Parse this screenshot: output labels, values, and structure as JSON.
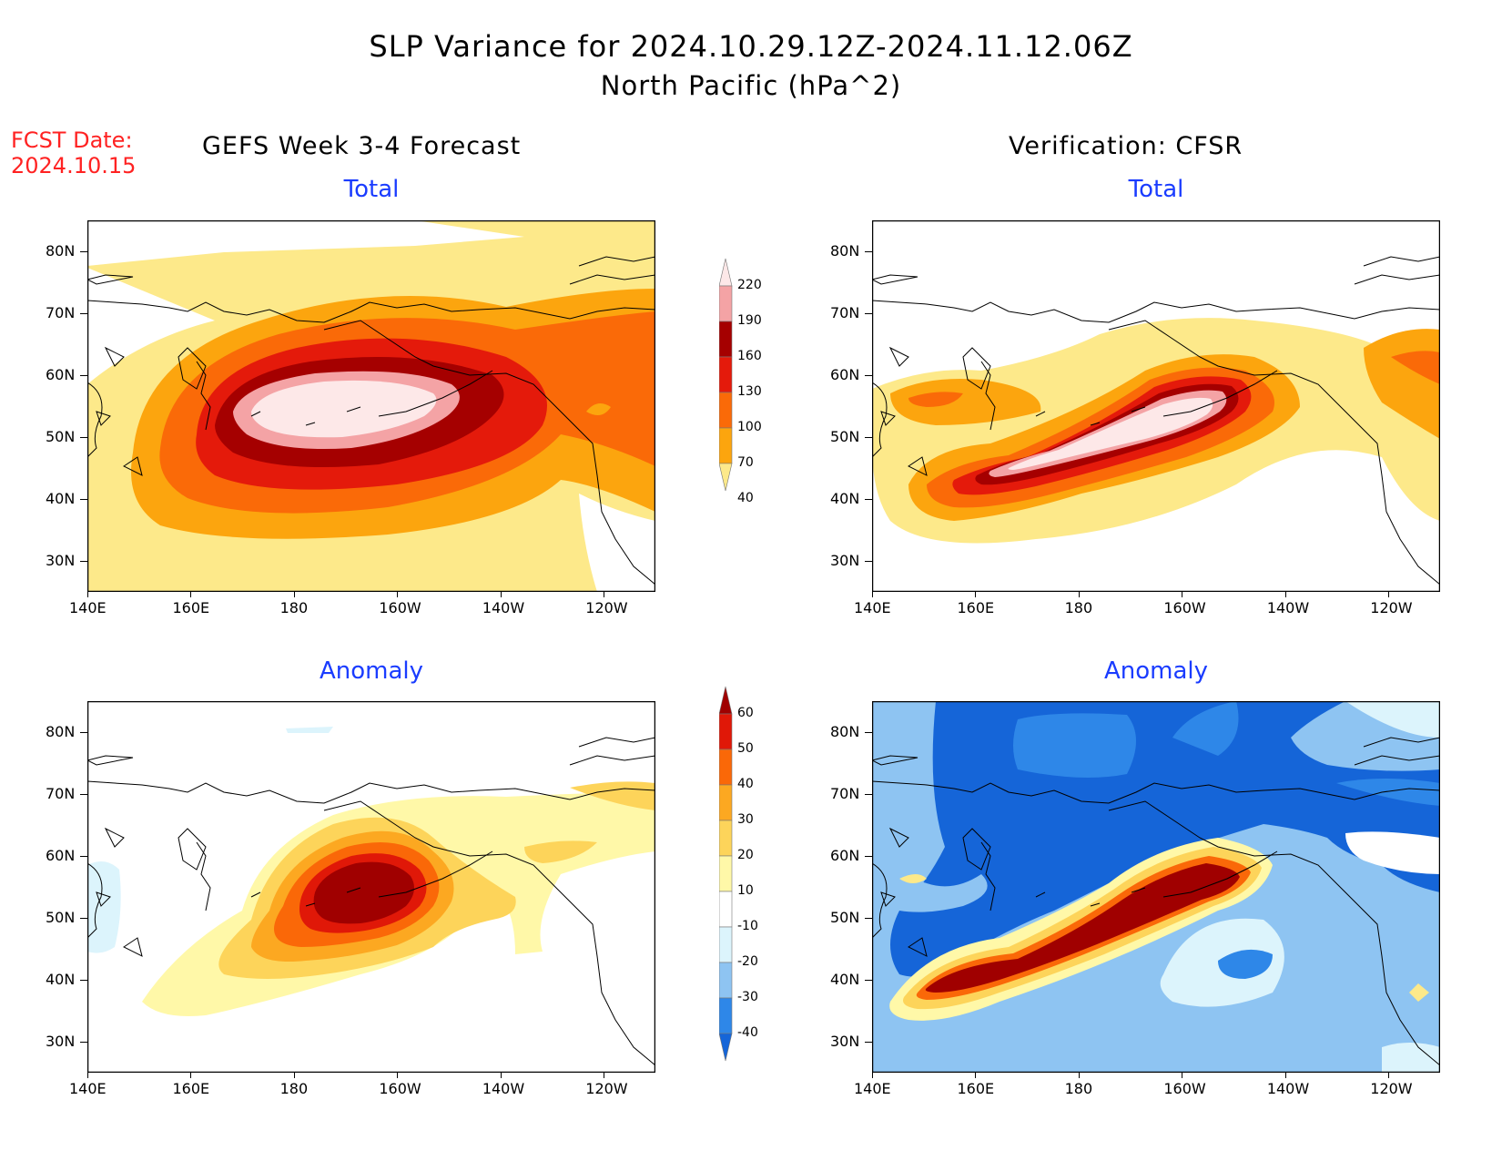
{
  "header": {
    "title_line1": "SLP Variance for 2024.10.29.12Z-2024.11.12.06Z",
    "title_line2": "North Pacific (hPa^2)",
    "fcst_label": "FCST Date:",
    "fcst_date": "2024.10.15",
    "left_column": "GEFS Week 3-4 Forecast",
    "right_column": "Verification: CFSR"
  },
  "panels": {
    "fcst_total": "Total",
    "fcst_anomaly": "Anomaly",
    "verif_total": "Total",
    "verif_anomaly": "Anomaly"
  },
  "axes": {
    "lon_labels": [
      "140E",
      "160E",
      "180",
      "160W",
      "140W",
      "120W"
    ],
    "lat_labels": [
      "80N",
      "70N",
      "60N",
      "50N",
      "40N",
      "30N"
    ],
    "lon_range": [
      140,
      250
    ],
    "lat_range": [
      25,
      85
    ]
  },
  "colorbars": {
    "total": {
      "levels": [
        "40",
        "70",
        "100",
        "130",
        "160",
        "190",
        "220"
      ],
      "colors": [
        "#fde98a",
        "#fca50e",
        "#fa6a08",
        "#e41a0b",
        "#a50000",
        "#f4a3a5",
        "#fde8e8"
      ]
    },
    "anomaly": {
      "levels": [
        "-40",
        "-30",
        "-20",
        "-10",
        "10",
        "20",
        "30",
        "40",
        "50",
        "60"
      ],
      "colors": [
        "#1565d8",
        "#2e87e8",
        "#8ec4f2",
        "#dcf4fc",
        "#ffffff",
        "#fff8a8",
        "#fdd45a",
        "#fca821",
        "#fa6808",
        "#e01808",
        "#a00000"
      ]
    }
  }
}
